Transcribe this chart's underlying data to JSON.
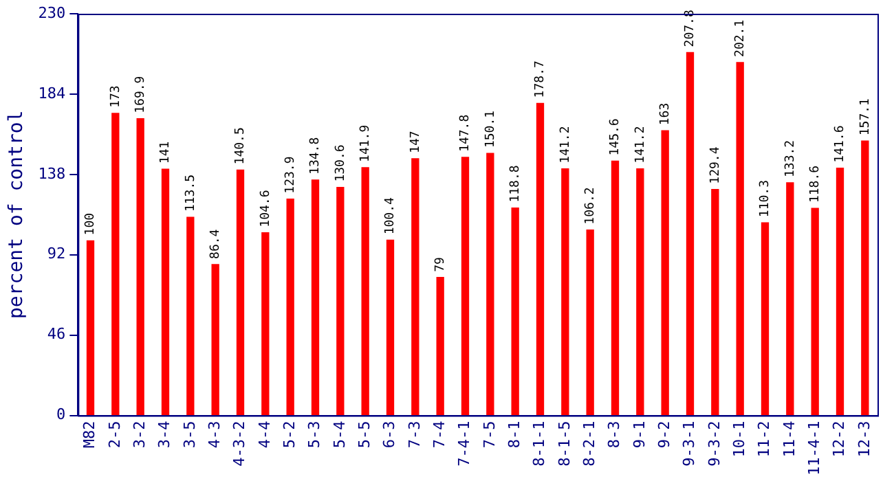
{
  "chart_data": {
    "type": "bar",
    "ylabel": "percent of control",
    "categories": [
      "M82",
      "2-5",
      "3-2",
      "3-4",
      "3-5",
      "4-3",
      "4-3-2",
      "4-4",
      "5-2",
      "5-3",
      "5-4",
      "5-5",
      "6-3",
      "7-3",
      "7-4",
      "7-4-1",
      "7-5",
      "8-1",
      "8-1-1",
      "8-1-5",
      "8-2-1",
      "8-3",
      "9-1",
      "9-2",
      "9-3-1",
      "9-3-2",
      "10-1",
      "11-2",
      "11-4",
      "11-4-1",
      "12-2",
      "12-3"
    ],
    "values": [
      100,
      173,
      169.9,
      141,
      113.5,
      86.4,
      140.5,
      104.6,
      123.9,
      134.8,
      130.6,
      141.9,
      100.4,
      147,
      79,
      147.8,
      150.1,
      118.8,
      178.7,
      141.2,
      106.2,
      145.6,
      141.2,
      163,
      207.8,
      129.4,
      202.1,
      110.3,
      133.2,
      118.6,
      141.6,
      157.1
    ],
    "color": "#ff0000",
    "ylim": [
      0,
      230
    ],
    "yticks": [
      0,
      46,
      92,
      138,
      184,
      230
    ],
    "grid": false,
    "legend": false,
    "data_labels": true
  }
}
